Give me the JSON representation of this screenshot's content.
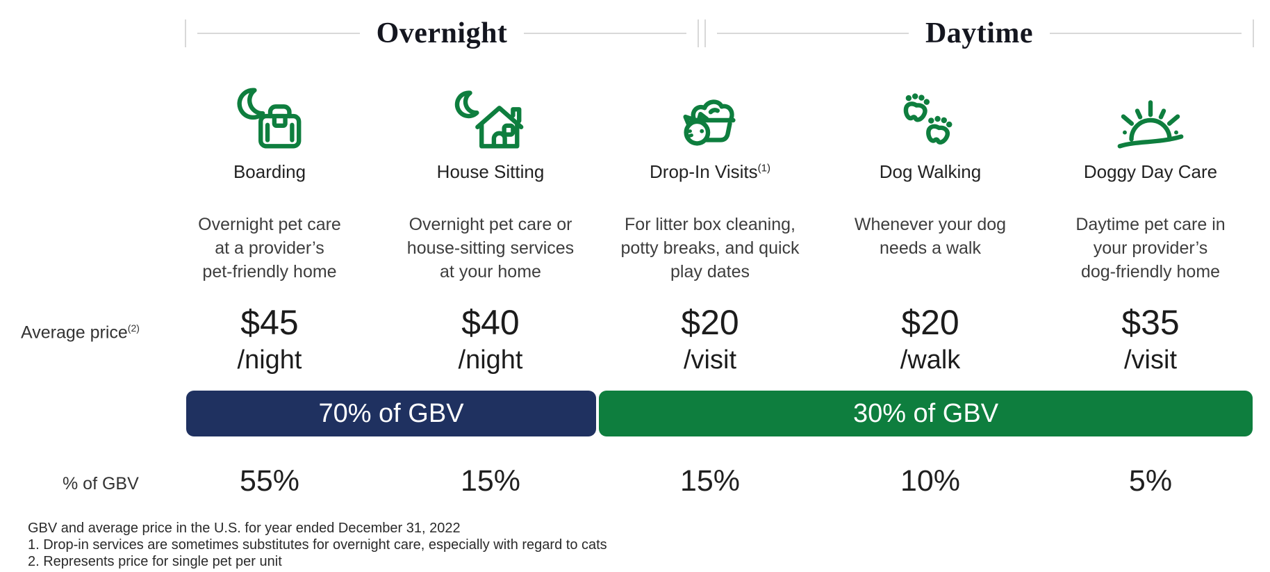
{
  "colors": {
    "green": "#0e7e3e",
    "navy": "#1f3160",
    "heading": "#14161f",
    "line-gray": "#d8d8d8"
  },
  "header": {
    "sections": [
      {
        "label": "Overnight"
      },
      {
        "label": "Daytime"
      }
    ]
  },
  "row_labels": {
    "average_price": "Average price",
    "average_price_sup": "(2)",
    "gbv_pct": "% of GBV"
  },
  "services": [
    {
      "name": "Boarding",
      "name_sup": "",
      "icon": "moon-suitcase-icon",
      "description_lines": [
        "Overnight pet care",
        "at a provider’s",
        "pet-friendly home"
      ],
      "price": "$45",
      "unit": "/night",
      "gbv_pct": "55%"
    },
    {
      "name": "House Sitting",
      "name_sup": "",
      "icon": "moon-house-icon",
      "description_lines": [
        "Overnight pet care or",
        "house-sitting services",
        "at your home"
      ],
      "price": "$40",
      "unit": "/night",
      "gbv_pct": "15%"
    },
    {
      "name": "Drop-In Visits",
      "name_sup": "(1)",
      "icon": "cat-food-bowl-icon",
      "description_lines": [
        "For litter box cleaning,",
        "potty breaks, and quick",
        "play dates"
      ],
      "price": "$20",
      "unit": "/visit",
      "gbv_pct": "15%"
    },
    {
      "name": "Dog Walking",
      "name_sup": "",
      "icon": "paw-prints-icon",
      "description_lines": [
        "Whenever your dog",
        "needs a walk"
      ],
      "price": "$20",
      "unit": "/walk",
      "gbv_pct": "10%"
    },
    {
      "name": "Doggy Day Care",
      "name_sup": "",
      "icon": "sunrise-icon",
      "description_lines": [
        "Daytime pet care in",
        "your provider’s",
        "dog-friendly home"
      ],
      "price": "$35",
      "unit": "/visit",
      "gbv_pct": "5%"
    }
  ],
  "gbv_bars": [
    {
      "section": "Overnight",
      "label": "70% of GBV"
    },
    {
      "section": "Daytime",
      "label": "30% of GBV"
    }
  ],
  "footnotes": [
    "GBV and average price in the U.S. for year ended December 31, 2022",
    "1. Drop-in services are sometimes substitutes for overnight care, especially with regard to cats",
    "2. Represents price for single pet per unit"
  ],
  "chart_data": {
    "type": "bar",
    "categories": [
      "Boarding",
      "House Sitting",
      "Drop-In Visits",
      "Dog Walking",
      "Doggy Day Care"
    ],
    "series": [
      {
        "name": "% of GBV",
        "values": [
          55,
          15,
          15,
          10,
          5
        ]
      },
      {
        "name": "Average price (USD)",
        "values": [
          45,
          40,
          20,
          20,
          35
        ]
      }
    ],
    "price_units": [
      "/night",
      "/night",
      "/visit",
      "/walk",
      "/visit"
    ],
    "groups": [
      {
        "name": "Overnight",
        "categories": [
          "Boarding",
          "House Sitting"
        ],
        "share_of_gbv": 70
      },
      {
        "name": "Daytime",
        "categories": [
          "Drop-In Visits",
          "Dog Walking",
          "Doggy Day Care"
        ],
        "share_of_gbv": 30
      }
    ],
    "legend_position": "none",
    "grid": false
  }
}
